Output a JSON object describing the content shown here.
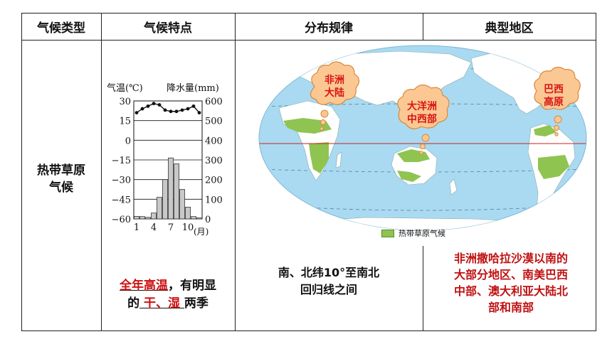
{
  "headers": {
    "climate_type": "气候类型",
    "climate_features": "气候特点",
    "distribution": "分布规律",
    "typical_regions": "典型地区"
  },
  "climate": {
    "name_line1": "热带草原",
    "name_line2": "气候"
  },
  "climograph": {
    "temp_axis_label": "气温(℃)",
    "precip_axis_label": "降水量(mm)",
    "temp_ticks": [
      "30",
      "15",
      "0",
      "−15",
      "−30",
      "−45",
      "−60"
    ],
    "precip_ticks": [
      "600",
      "500",
      "400",
      "300",
      "200",
      "100",
      "0"
    ],
    "month_ticks": [
      "1",
      "4",
      "7",
      "10"
    ],
    "month_unit": "(月)",
    "temperature_c": [
      21,
      24,
      26,
      28,
      27,
      23,
      22,
      22,
      23,
      24,
      26,
      21
    ],
    "precipitation_mm": [
      13,
      12,
      8,
      30,
      110,
      200,
      310,
      280,
      150,
      60,
      12,
      5
    ]
  },
  "features": {
    "part1": "全年高温",
    "part2": "，有明显",
    "part3": "的",
    "part4": "干、湿",
    "part5": "两季"
  },
  "distribution_text": {
    "line1": "南、北纬10°至南北",
    "line2": "回归线之间"
  },
  "map": {
    "cloud_africa_line1": "非洲",
    "cloud_africa_line2": "大陆",
    "cloud_australia_line1": "大洋洲",
    "cloud_australia_line2": "中西部",
    "cloud_brazil_line1": "巴西",
    "cloud_brazil_line2": "高原",
    "legend_label": "热带草原气候",
    "ocean_color": "#a9daf2",
    "land_color": "#ffffff",
    "savanna_color": "#8fc451"
  },
  "regions": {
    "line1": "非洲撒哈拉沙漠以南的",
    "line2": "大部分地区、南美巴西",
    "line3": "中部、澳大利亚大陆北",
    "line4": "部和南部"
  }
}
